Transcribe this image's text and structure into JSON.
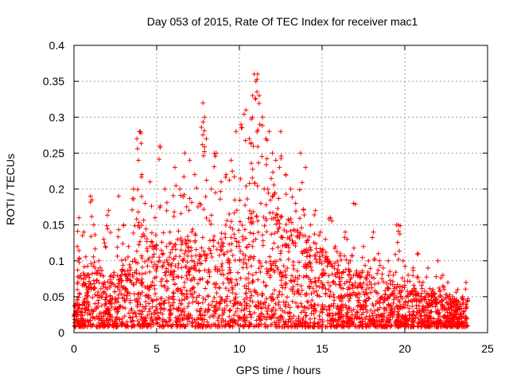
{
  "chart_data": {
    "type": "scatter",
    "title": "Day 053 of 2015, Rate Of TEC Index for receiver mac1",
    "xlabel": "GPS time / hours",
    "ylabel": "ROTI / TECUs",
    "xlim": [
      0,
      25
    ],
    "ylim": [
      0,
      0.4
    ],
    "xticks": [
      0,
      5,
      10,
      15,
      20,
      25
    ],
    "yticks": [
      0,
      0.05,
      0.1,
      0.15,
      0.2,
      0.25,
      0.3,
      0.35,
      0.4
    ],
    "ytick_labels": [
      "0",
      "0.05",
      "0.1",
      "0.15",
      "0.2",
      "0.25",
      "0.3",
      "0.35",
      "0.4"
    ],
    "xtick_labels": [
      "0",
      "5",
      "10",
      "15",
      "20",
      "25"
    ],
    "grid": true,
    "marker": "+",
    "color": "#ff0000",
    "series": [
      {
        "values_x": [
          0.1,
          0.2,
          0.3,
          0.4,
          0.6,
          0.8,
          1.0,
          1.2,
          1.5,
          1.8,
          2.1,
          2.4,
          2.7,
          3.0,
          3.3,
          3.6,
          3.8,
          3.9,
          4.0,
          4.1,
          4.3,
          4.6,
          4.9,
          5.2,
          5.5,
          5.8,
          6.1,
          6.4,
          6.7,
          7.0,
          7.3,
          7.6,
          7.8,
          7.9,
          8.0,
          8.3,
          8.6,
          8.9,
          9.2,
          9.5,
          9.8,
          10.1,
          10.4,
          10.6,
          10.8,
          10.9,
          11.0,
          11.1,
          11.2,
          11.4,
          11.6,
          11.8,
          12.0,
          12.2,
          12.5,
          12.8,
          13.1,
          13.4,
          13.7,
          14.0,
          14.3,
          14.6,
          14.9,
          15.2,
          15.5,
          15.8,
          16.1,
          16.4,
          16.7,
          16.9,
          17.2,
          17.5,
          17.8,
          18.1,
          18.4,
          18.7,
          19.0,
          19.3,
          19.5,
          19.6,
          19.9,
          20.2,
          20.5,
          20.8,
          21.1,
          21.4,
          21.7,
          22.0,
          22.3,
          22.6,
          22.9,
          23.2,
          23.5,
          23.7
        ],
        "values_y": [
          0.03,
          0.12,
          0.16,
          0.08,
          0.14,
          0.06,
          0.19,
          0.15,
          0.1,
          0.13,
          0.17,
          0.08,
          0.19,
          0.15,
          0.12,
          0.2,
          0.27,
          0.24,
          0.28,
          0.22,
          0.18,
          0.21,
          0.16,
          0.26,
          0.2,
          0.14,
          0.23,
          0.2,
          0.25,
          0.24,
          0.22,
          0.18,
          0.32,
          0.3,
          0.27,
          0.2,
          0.25,
          0.21,
          0.22,
          0.24,
          0.28,
          0.29,
          0.31,
          0.27,
          0.33,
          0.36,
          0.35,
          0.36,
          0.33,
          0.3,
          0.27,
          0.28,
          0.25,
          0.24,
          0.28,
          0.22,
          0.2,
          0.18,
          0.25,
          0.23,
          0.15,
          0.17,
          0.14,
          0.13,
          0.16,
          0.12,
          0.11,
          0.14,
          0.1,
          0.18,
          0.08,
          0.12,
          0.1,
          0.14,
          0.11,
          0.09,
          0.1,
          0.08,
          0.15,
          0.15,
          0.1,
          0.08,
          0.09,
          0.11,
          0.07,
          0.09,
          0.06,
          0.1,
          0.08,
          0.07,
          0.05,
          0.06,
          0.05,
          0.07
        ]
      }
    ],
    "cloud": {
      "description_free": true,
      "envelope_hours": [
        0,
        1,
        2,
        3,
        4,
        5,
        6,
        7,
        8,
        9,
        10,
        11,
        12,
        13,
        14,
        15,
        16,
        17,
        18,
        19,
        20,
        21,
        22,
        23,
        23.8
      ],
      "envelope_upper": [
        0.06,
        0.09,
        0.07,
        0.09,
        0.12,
        0.12,
        0.12,
        0.13,
        0.13,
        0.13,
        0.15,
        0.17,
        0.16,
        0.15,
        0.13,
        0.11,
        0.09,
        0.08,
        0.07,
        0.06,
        0.06,
        0.05,
        0.05,
        0.04,
        0.04
      ],
      "density": 2600
    }
  }
}
